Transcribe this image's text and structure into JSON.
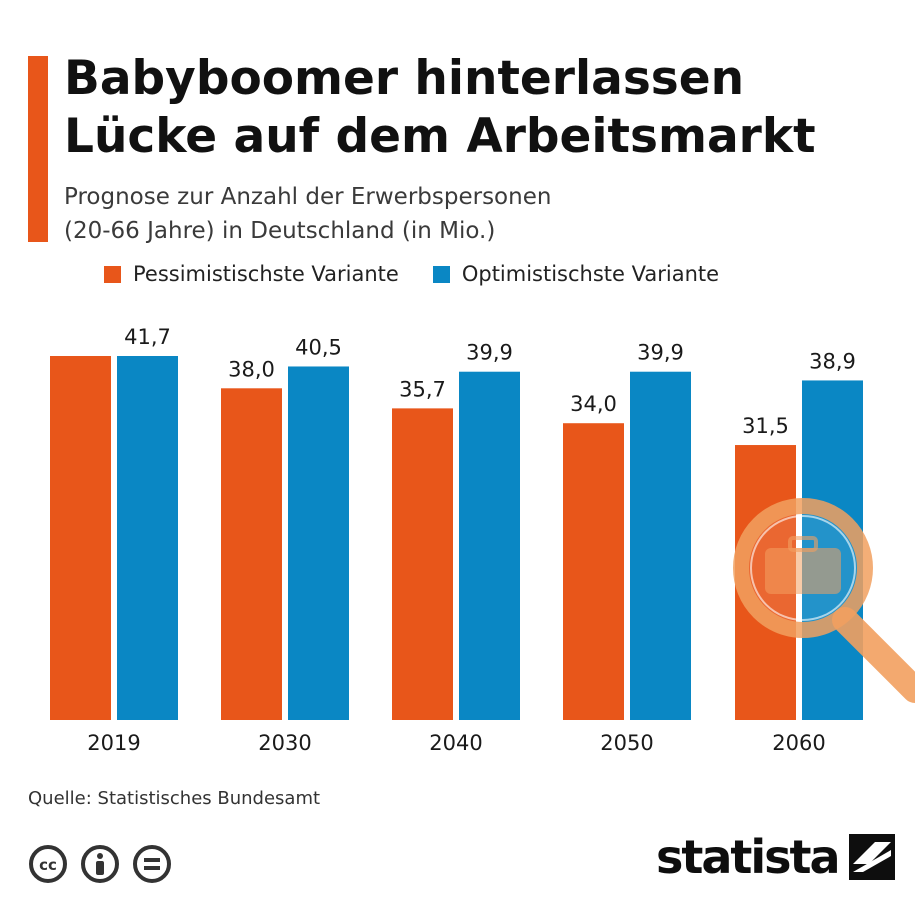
{
  "header": {
    "title_line1": "Babyboomer hinterlassen",
    "title_line2": "Lücke auf dem Arbeitsmarkt",
    "subtitle_line1": "Prognose zur Anzahl der Erwerbspersonen",
    "subtitle_line2": "(20-66 Jahre) in Deutschland (in Mio.)"
  },
  "colors": {
    "accent": "#e8561a",
    "pessimistic": "#e8561a",
    "optimistic": "#0a87c4",
    "magnifier": "#f2a060"
  },
  "chart_data": {
    "type": "bar",
    "categories": [
      "2019",
      "2030",
      "2040",
      "2050",
      "2060"
    ],
    "series": [
      {
        "name": "Pessimistischste Variante",
        "values": [
          41.7,
          38.0,
          35.7,
          34.0,
          31.5
        ],
        "labels": [
          "",
          "38,0",
          "35,7",
          "34,0",
          "31,5"
        ]
      },
      {
        "name": "Optimistischste Variante",
        "values": [
          41.7,
          40.5,
          39.9,
          39.9,
          38.9
        ],
        "labels": [
          "41,7",
          "40,5",
          "39,9",
          "39,9",
          "38,9"
        ]
      }
    ],
    "shared_label_2019": "41,7",
    "ylim": [
      0,
      45
    ],
    "grid": false,
    "legend": "top-left"
  },
  "footer": {
    "source": "Quelle: Statistisches Bundesamt",
    "brand": "statista",
    "license_icons": [
      "cc-icon",
      "attribution-icon",
      "no-derivatives-icon"
    ]
  }
}
